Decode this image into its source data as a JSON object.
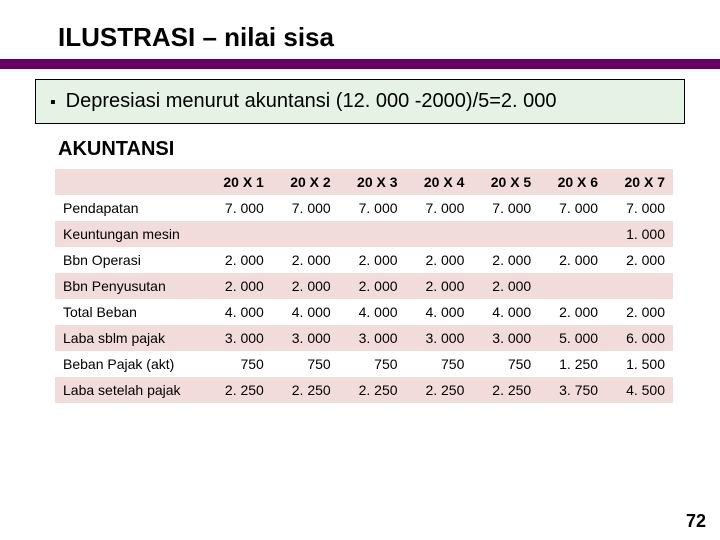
{
  "title": "ILUSTRASI – nilai sisa",
  "bullet": "Depresiasi menurut akuntansi (12. 000 -2000)/5=2. 000",
  "section_label": "AKUNTANSI",
  "page_number": "72",
  "colors": {
    "accent_bar": "#660066",
    "bullet_box_bg": "#e6f2e6",
    "table_band": "#f2dcdb",
    "background": "#ffffff"
  },
  "table": {
    "columns": [
      "",
      "20 X 1",
      "20 X 2",
      "20 X 3",
      "20 X 4",
      "20 X 5",
      "20 X 6",
      "20 X 7"
    ],
    "rows": [
      [
        "Pendapatan",
        "7. 000",
        "7. 000",
        "7. 000",
        "7. 000",
        "7. 000",
        "7. 000",
        "7. 000"
      ],
      [
        "Keuntungan mesin",
        "",
        "",
        "",
        "",
        "",
        "",
        "1. 000"
      ],
      [
        "Bbn Operasi",
        "2. 000",
        "2. 000",
        "2. 000",
        "2. 000",
        "2. 000",
        "2. 000",
        "2. 000"
      ],
      [
        "Bbn Penyusutan",
        "2. 000",
        "2. 000",
        "2. 000",
        "2. 000",
        "2. 000",
        "",
        ""
      ],
      [
        "Total Beban",
        "4. 000",
        "4. 000",
        "4. 000",
        "4. 000",
        "4. 000",
        "2. 000",
        "2. 000"
      ],
      [
        "Laba sblm pajak",
        "3. 000",
        "3. 000",
        "3. 000",
        "3. 000",
        "3. 000",
        "5. 000",
        "6. 000"
      ],
      [
        "Beban Pajak (akt)",
        "750",
        "750",
        "750",
        "750",
        "750",
        "1. 250",
        "1. 500"
      ],
      [
        "Laba setelah pajak",
        "2. 250",
        "2. 250",
        "2. 250",
        "2. 250",
        "2. 250",
        "3. 750",
        "4. 500"
      ]
    ],
    "header_bg": "#f2dcdb",
    "band_bg": "#f2dcdb",
    "font_size": 14
  }
}
